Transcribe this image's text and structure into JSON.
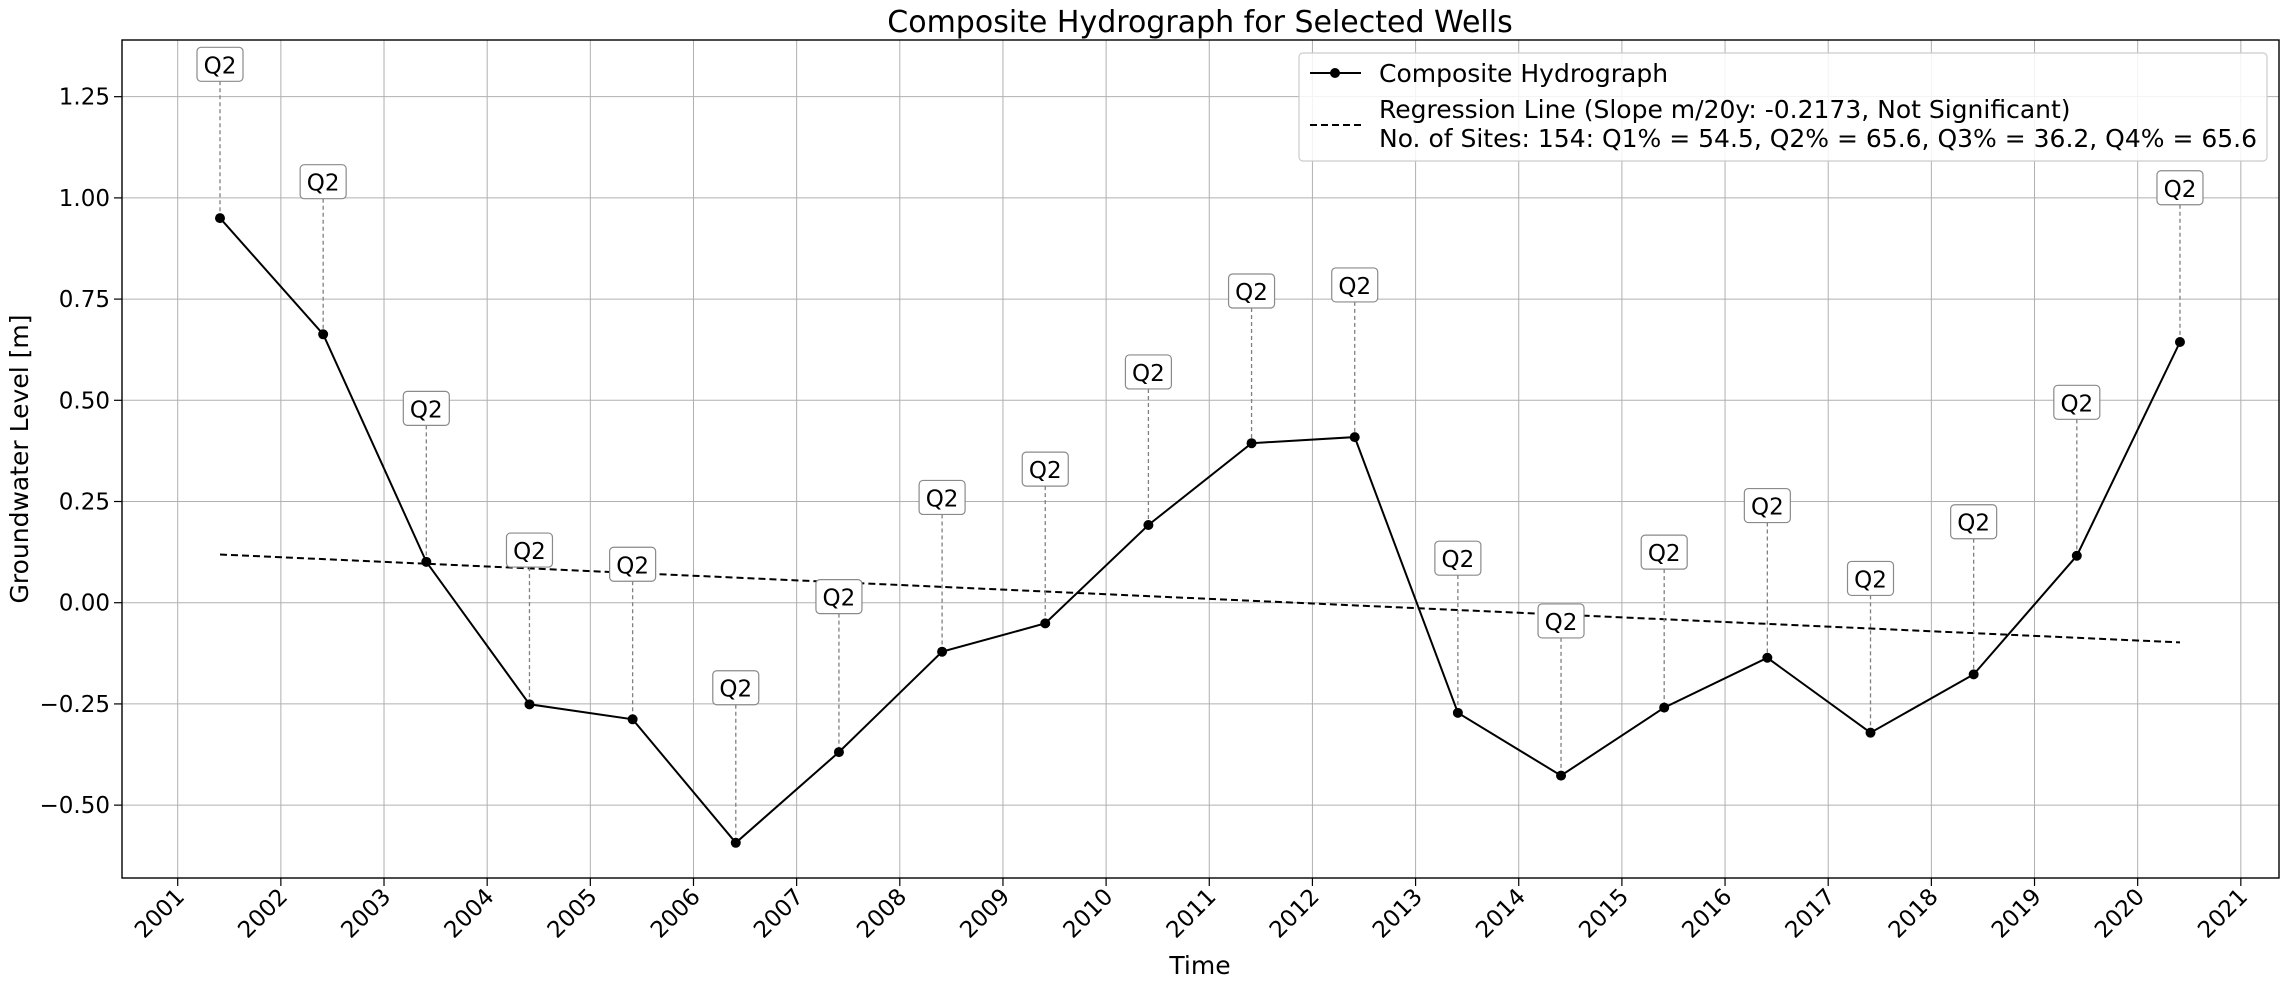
{
  "chart_data": {
    "type": "line",
    "title": "Composite Hydrograph for Selected Wells",
    "xlabel": "Time",
    "ylabel": "Groundwater Level [m]",
    "xlim": [
      2000.46,
      2021.37
    ],
    "ylim": [
      -0.68,
      1.39
    ],
    "x_ticks": [
      "2001",
      "2002",
      "2003",
      "2004",
      "2005",
      "2006",
      "2007",
      "2008",
      "2009",
      "2010",
      "2011",
      "2012",
      "2013",
      "2014",
      "2015",
      "2016",
      "2017",
      "2018",
      "2019",
      "2020",
      "2021"
    ],
    "y_ticks": [
      {
        "value": -0.5,
        "label": "−0.50"
      },
      {
        "value": -0.25,
        "label": "−0.25"
      },
      {
        "value": 0.0,
        "label": "0.00"
      },
      {
        "value": 0.25,
        "label": "0.25"
      },
      {
        "value": 0.5,
        "label": "0.50"
      },
      {
        "value": 0.75,
        "label": "0.75"
      },
      {
        "value": 1.0,
        "label": "1.00"
      },
      {
        "value": 1.25,
        "label": "1.25"
      }
    ],
    "grid": true,
    "legend_position": "upper right",
    "series": [
      {
        "name": "Composite Hydrograph",
        "style": "solid-with-markers",
        "color": "#000000",
        "x": [
          2001.41,
          2002.41,
          2003.41,
          2004.41,
          2005.41,
          2006.41,
          2007.41,
          2008.41,
          2009.41,
          2010.41,
          2011.41,
          2012.41,
          2013.41,
          2014.41,
          2015.41,
          2016.41,
          2017.41,
          2018.41,
          2019.41,
          2020.41
        ],
        "y": [
          0.95,
          0.663,
          0.101,
          -0.251,
          -0.288,
          -0.593,
          -0.369,
          -0.121,
          -0.051,
          0.192,
          0.394,
          0.409,
          -0.272,
          -0.427,
          -0.259,
          -0.136,
          -0.321,
          -0.177,
          0.116,
          0.644
        ]
      },
      {
        "name": "Regression Line (Slope m/20y: -0.2173, Not Significant)",
        "style": "dashed",
        "color": "#000000",
        "x": [
          2001.41,
          2020.41
        ],
        "y": [
          0.119,
          -0.098
        ]
      }
    ],
    "legend_extra": "No. of Sites: 154: Q1% = 54.5, Q2% = 65.6, Q3% = 36.2, Q4% = 65.6",
    "annotations": {
      "label": "Q2",
      "y": [
        1.33,
        1.04,
        0.48,
        0.13,
        0.095,
        -0.21,
        0.015,
        0.26,
        0.33,
        0.57,
        0.77,
        0.785,
        0.11,
        -0.045,
        0.125,
        0.24,
        0.06,
        0.2,
        0.495,
        1.025
      ]
    }
  }
}
